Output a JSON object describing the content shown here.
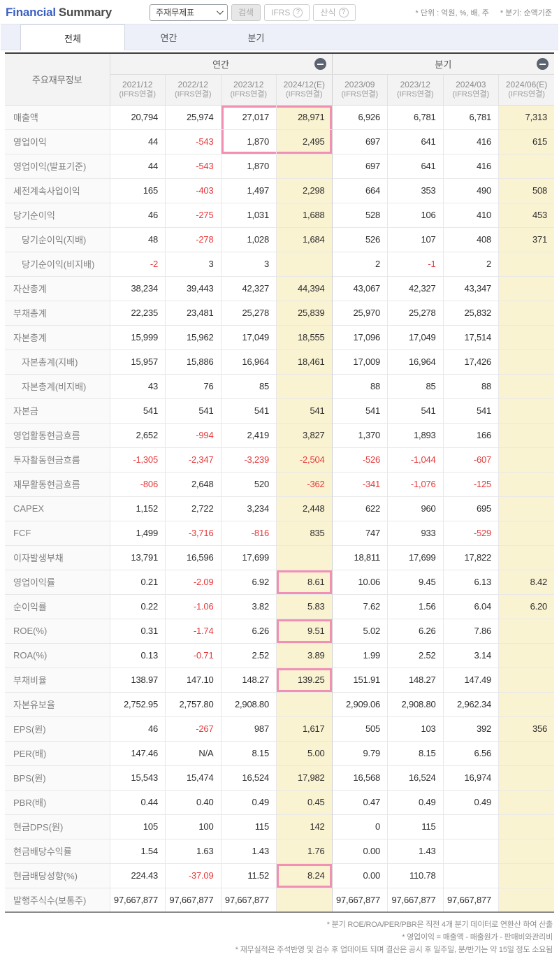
{
  "header": {
    "title_primary": "Financial",
    "title_secondary": "Summary",
    "dropdown_value": "주재무제표",
    "search_label": "검색",
    "ifrs_label": "IFRS",
    "formula_label": "산식",
    "question_glyph": "?",
    "unit_note": "* 단위 : 억원, %, 배, 주",
    "basis_note": "* 분기: 순액기준"
  },
  "tabs": [
    {
      "label": "전체",
      "active": true
    },
    {
      "label": "연간",
      "active": false
    },
    {
      "label": "분기",
      "active": false
    }
  ],
  "colors": {
    "accent_blue": "#3a5fc4",
    "negative_red": "#e5393b",
    "estimate_bg": "#faf3d2",
    "highlight_pink": "#f290b4",
    "collapse_icon_bg": "#5b6370"
  },
  "table": {
    "corner_label": "주요재무정보",
    "groups": [
      {
        "label": "연간",
        "colspan": 4,
        "icon": "minus-circle-icon"
      },
      {
        "label": "분기",
        "colspan": 4,
        "icon": "minus-circle-icon"
      }
    ],
    "columns": [
      {
        "period": "2021/12",
        "standard": "(IFRS연결)",
        "estimate": false
      },
      {
        "period": "2022/12",
        "standard": "(IFRS연결)",
        "estimate": false
      },
      {
        "period": "2023/12",
        "standard": "(IFRS연결)",
        "estimate": false
      },
      {
        "period": "2024/12(E)",
        "standard": "(IFRS연결)",
        "estimate": true
      },
      {
        "period": "2023/09",
        "standard": "(IFRS연결)",
        "estimate": false
      },
      {
        "period": "2023/12",
        "standard": "(IFRS연결)",
        "estimate": false
      },
      {
        "period": "2024/03",
        "standard": "(IFRS연결)",
        "estimate": false
      },
      {
        "period": "2024/06(E)",
        "standard": "(IFRS연결)",
        "estimate": true
      }
    ],
    "rows": [
      {
        "label": "매출액",
        "indent": false,
        "values": [
          "20,794",
          "25,974",
          "27,017",
          "28,971",
          "6,926",
          "6,781",
          "6,781",
          "7,313"
        ]
      },
      {
        "label": "영업이익",
        "indent": false,
        "values": [
          "44",
          "-543",
          "1,870",
          "2,495",
          "697",
          "641",
          "416",
          "615"
        ]
      },
      {
        "label": "영업이익(발표기준)",
        "indent": false,
        "values": [
          "44",
          "-543",
          "1,870",
          "",
          "697",
          "641",
          "416",
          ""
        ]
      },
      {
        "label": "세전계속사업이익",
        "indent": false,
        "values": [
          "165",
          "-403",
          "1,497",
          "2,298",
          "664",
          "353",
          "490",
          "508"
        ]
      },
      {
        "label": "당기순이익",
        "indent": false,
        "values": [
          "46",
          "-275",
          "1,031",
          "1,688",
          "528",
          "106",
          "410",
          "453"
        ]
      },
      {
        "label": "당기순이익(지배)",
        "indent": true,
        "values": [
          "48",
          "-278",
          "1,028",
          "1,684",
          "526",
          "107",
          "408",
          "371"
        ]
      },
      {
        "label": "당기순이익(비지배)",
        "indent": true,
        "values": [
          "-2",
          "3",
          "3",
          "",
          "2",
          "-1",
          "2",
          ""
        ]
      },
      {
        "label": "자산총계",
        "indent": false,
        "values": [
          "38,234",
          "39,443",
          "42,327",
          "44,394",
          "43,067",
          "42,327",
          "43,347",
          ""
        ]
      },
      {
        "label": "부채총계",
        "indent": false,
        "values": [
          "22,235",
          "23,481",
          "25,278",
          "25,839",
          "25,970",
          "25,278",
          "25,832",
          ""
        ]
      },
      {
        "label": "자본총계",
        "indent": false,
        "values": [
          "15,999",
          "15,962",
          "17,049",
          "18,555",
          "17,096",
          "17,049",
          "17,514",
          ""
        ]
      },
      {
        "label": "자본총계(지배)",
        "indent": true,
        "values": [
          "15,957",
          "15,886",
          "16,964",
          "18,461",
          "17,009",
          "16,964",
          "17,426",
          ""
        ]
      },
      {
        "label": "자본총계(비지배)",
        "indent": true,
        "values": [
          "43",
          "76",
          "85",
          "",
          "88",
          "85",
          "88",
          ""
        ]
      },
      {
        "label": "자본금",
        "indent": false,
        "values": [
          "541",
          "541",
          "541",
          "541",
          "541",
          "541",
          "541",
          ""
        ]
      },
      {
        "label": "영업활동현금흐름",
        "indent": false,
        "values": [
          "2,652",
          "-994",
          "2,419",
          "3,827",
          "1,370",
          "1,893",
          "166",
          ""
        ]
      },
      {
        "label": "투자활동현금흐름",
        "indent": false,
        "values": [
          "-1,305",
          "-2,347",
          "-3,239",
          "-2,504",
          "-526",
          "-1,044",
          "-607",
          ""
        ]
      },
      {
        "label": "재무활동현금흐름",
        "indent": false,
        "values": [
          "-806",
          "2,648",
          "520",
          "-362",
          "-341",
          "-1,076",
          "-125",
          ""
        ]
      },
      {
        "label": "CAPEX",
        "indent": false,
        "values": [
          "1,152",
          "2,722",
          "3,234",
          "2,448",
          "622",
          "960",
          "695",
          ""
        ]
      },
      {
        "label": "FCF",
        "indent": false,
        "values": [
          "1,499",
          "-3,716",
          "-816",
          "835",
          "747",
          "933",
          "-529",
          ""
        ]
      },
      {
        "label": "이자발생부채",
        "indent": false,
        "values": [
          "13,791",
          "16,596",
          "17,699",
          "",
          "18,811",
          "17,699",
          "17,822",
          ""
        ]
      },
      {
        "label": "영업이익률",
        "indent": false,
        "values": [
          "0.21",
          "-2.09",
          "6.92",
          "8.61",
          "10.06",
          "9.45",
          "6.13",
          "8.42"
        ]
      },
      {
        "label": "순이익률",
        "indent": false,
        "values": [
          "0.22",
          "-1.06",
          "3.82",
          "5.83",
          "7.62",
          "1.56",
          "6.04",
          "6.20"
        ]
      },
      {
        "label": "ROE(%)",
        "indent": false,
        "values": [
          "0.31",
          "-1.74",
          "6.26",
          "9.51",
          "5.02",
          "6.26",
          "7.86",
          ""
        ]
      },
      {
        "label": "ROA(%)",
        "indent": false,
        "values": [
          "0.13",
          "-0.71",
          "2.52",
          "3.89",
          "1.99",
          "2.52",
          "3.14",
          ""
        ]
      },
      {
        "label": "부채비율",
        "indent": false,
        "values": [
          "138.97",
          "147.10",
          "148.27",
          "139.25",
          "151.91",
          "148.27",
          "147.49",
          ""
        ]
      },
      {
        "label": "자본유보율",
        "indent": false,
        "values": [
          "2,752.95",
          "2,757.80",
          "2,908.80",
          "",
          "2,909.06",
          "2,908.80",
          "2,962.34",
          ""
        ]
      },
      {
        "label": "EPS(원)",
        "indent": false,
        "values": [
          "46",
          "-267",
          "987",
          "1,617",
          "505",
          "103",
          "392",
          "356"
        ]
      },
      {
        "label": "PER(배)",
        "indent": false,
        "values": [
          "147.46",
          "N/A",
          "8.15",
          "5.00",
          "9.79",
          "8.15",
          "6.56",
          ""
        ]
      },
      {
        "label": "BPS(원)",
        "indent": false,
        "values": [
          "15,543",
          "15,474",
          "16,524",
          "17,982",
          "16,568",
          "16,524",
          "16,974",
          ""
        ]
      },
      {
        "label": "PBR(배)",
        "indent": false,
        "values": [
          "0.44",
          "0.40",
          "0.49",
          "0.45",
          "0.47",
          "0.49",
          "0.49",
          ""
        ]
      },
      {
        "label": "현금DPS(원)",
        "indent": false,
        "values": [
          "105",
          "100",
          "115",
          "142",
          "0",
          "115",
          "",
          ""
        ]
      },
      {
        "label": "현금배당수익률",
        "indent": false,
        "values": [
          "1.54",
          "1.63",
          "1.43",
          "1.76",
          "0.00",
          "1.43",
          "",
          ""
        ]
      },
      {
        "label": "현금배당성향(%)",
        "indent": false,
        "values": [
          "224.43",
          "-37.09",
          "11.52",
          "8.24",
          "0.00",
          "110.78",
          "",
          ""
        ]
      },
      {
        "label": "발행주식수(보통주)",
        "indent": false,
        "values": [
          "97,667,877",
          "97,667,877",
          "97,667,877",
          "",
          "97,667,877",
          "97,667,877",
          "97,667,877",
          ""
        ]
      }
    ],
    "highlights": [
      {
        "row_start": 0,
        "row_end": 1,
        "col_start": 2,
        "col_end": 3
      },
      {
        "row_start": 19,
        "row_end": 19,
        "col_start": 3,
        "col_end": 3
      },
      {
        "row_start": 21,
        "row_end": 21,
        "col_start": 3,
        "col_end": 3
      },
      {
        "row_start": 23,
        "row_end": 23,
        "col_start": 3,
        "col_end": 3
      },
      {
        "row_start": 31,
        "row_end": 31,
        "col_start": 3,
        "col_end": 3
      }
    ]
  },
  "footnotes": [
    "* 분기 ROE/ROA/PER/PBR은 직전 4개 분기 데이터로 연환산 하여 산출",
    "* 영업이익 = 매출액 - 매출원가 - 판매비와관리비",
    "* 재무실적은 주석반영 및 검수 후 업데이트 되며 결산은 공시 후 일주일, 분/반기는 약 15일 정도 소요됨"
  ]
}
